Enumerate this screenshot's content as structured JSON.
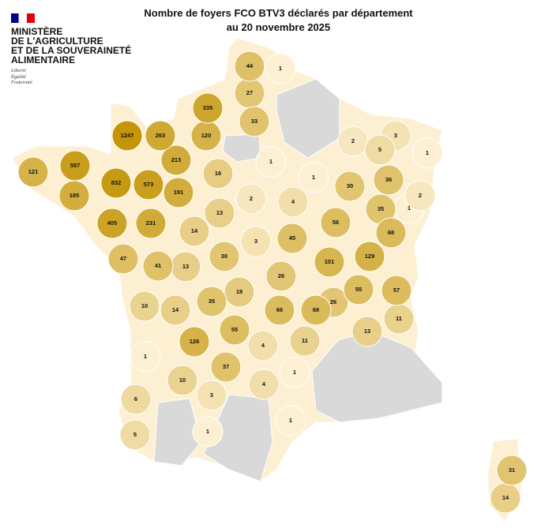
{
  "logo": {
    "lines": [
      "MINISTÈRE",
      "DE L'AGRICULTURE",
      "ET DE LA SOUVERAINETÉ",
      "ALIMENTAIRE"
    ],
    "motto": [
      "Liberté",
      "Égalité",
      "Fraternité"
    ]
  },
  "title": [
    "Nombre de foyers FCO BTV3 déclarés par département",
    "au 20 novembre 2025"
  ],
  "color_scale": {
    "low": "#fdf0d2",
    "high": "#c39507",
    "no_data": "#d9d9d9"
  },
  "departments": {
    "values": [
      44,
      1,
      27,
      335,
      33,
      1247,
      263,
      120,
      2,
      3,
      5,
      1,
      121,
      597,
      213,
      1,
      16,
      1,
      30,
      36,
      832,
      573,
      191,
      185,
      2,
      4,
      2,
      35,
      1,
      13,
      56,
      405,
      231,
      14,
      68,
      3,
      45,
      47,
      30,
      101,
      129,
      41,
      13,
      26,
      55,
      57,
      18,
      10,
      35,
      26,
      14,
      66,
      68,
      11,
      55,
      13,
      126,
      4,
      11,
      1,
      37,
      1,
      10,
      4,
      3,
      6,
      1,
      1,
      5,
      31,
      14
    ]
  }
}
